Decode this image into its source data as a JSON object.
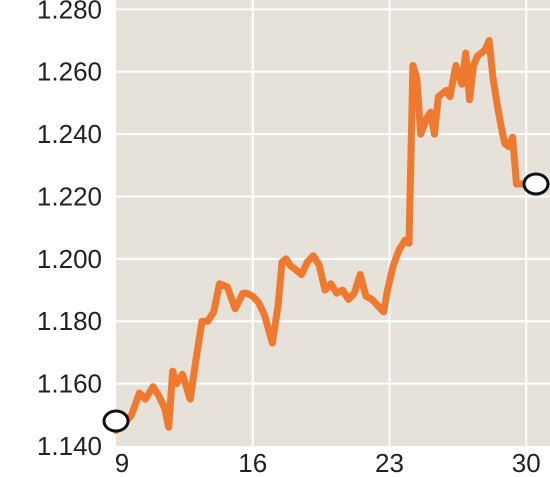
{
  "colors": {
    "plot_background": "#e6e2da",
    "grid": "#ffffff",
    "line": "#ef7a2f",
    "marker_fill": "#ffffff",
    "marker_stroke": "#111111"
  },
  "chart_data": {
    "type": "line",
    "title": "",
    "xlabel": "",
    "ylabel": "",
    "grid": true,
    "xlim": [
      9,
      30.5
    ],
    "ylim": [
      1.14,
      1.283
    ],
    "x_ticks": [
      {
        "value": 9,
        "label": "9"
      },
      {
        "value": 16,
        "label": "16"
      },
      {
        "value": 23,
        "label": "23"
      },
      {
        "value": 30,
        "label": "30"
      }
    ],
    "y_ticks": [
      {
        "value": 1.14,
        "label": "1.140"
      },
      {
        "value": 1.16,
        "label": "1.160"
      },
      {
        "value": 1.18,
        "label": "1.180"
      },
      {
        "value": 1.2,
        "label": "1.200"
      },
      {
        "value": 1.22,
        "label": "1.220"
      },
      {
        "value": 1.24,
        "label": "1.240"
      },
      {
        "value": 1.26,
        "label": "1.260"
      },
      {
        "value": 1.28,
        "label": "1.280"
      }
    ],
    "series": [
      {
        "x": [
          9.0,
          9.4,
          9.8,
          10.2,
          10.5,
          10.9,
          11.2,
          11.5,
          11.7,
          11.9,
          12.1,
          12.4,
          12.8,
          13.1,
          13.4,
          13.7,
          14.0,
          14.3,
          14.7,
          15.1,
          15.5,
          15.7,
          16.0,
          16.3,
          16.6,
          17.0,
          17.3,
          17.5,
          17.7,
          17.9,
          18.1,
          18.5,
          18.8,
          19.1,
          19.4,
          19.7,
          20.0,
          20.3,
          20.6,
          20.9,
          21.2,
          21.5,
          21.8,
          22.1,
          22.4,
          22.7,
          22.9,
          23.2,
          23.5,
          23.8,
          24.0,
          24.2,
          24.4,
          24.6,
          24.9,
          25.1,
          25.3,
          25.5,
          25.7,
          25.9,
          26.1,
          26.4,
          26.7,
          26.9,
          27.1,
          27.3,
          27.5,
          27.7,
          27.9,
          28.1,
          28.3,
          28.5,
          28.7,
          28.9,
          29.1,
          29.3,
          29.5,
          29.7,
          29.9,
          30.1,
          30.3
        ],
        "y": [
          1.145,
          1.147,
          1.15,
          1.157,
          1.155,
          1.159,
          1.156,
          1.152,
          1.146,
          1.164,
          1.16,
          1.163,
          1.155,
          1.168,
          1.18,
          1.18,
          1.183,
          1.192,
          1.191,
          1.184,
          1.189,
          1.189,
          1.188,
          1.186,
          1.182,
          1.173,
          1.185,
          1.199,
          1.2,
          1.198,
          1.197,
          1.195,
          1.199,
          1.201,
          1.198,
          1.19,
          1.192,
          1.189,
          1.19,
          1.187,
          1.189,
          1.195,
          1.188,
          1.187,
          1.185,
          1.183,
          1.19,
          1.198,
          1.203,
          1.206,
          1.205,
          1.262,
          1.258,
          1.24,
          1.245,
          1.247,
          1.24,
          1.252,
          1.253,
          1.254,
          1.252,
          1.262,
          1.256,
          1.266,
          1.251,
          1.262,
          1.265,
          1.266,
          1.267,
          1.27,
          1.258,
          1.25,
          1.243,
          1.237,
          1.236,
          1.239,
          1.224,
          1.224,
          1.224,
          1.224,
          1.224
        ]
      }
    ],
    "markers": [
      {
        "x": 9.0,
        "y": 1.148
      },
      {
        "x": 30.5,
        "y": 1.224
      }
    ]
  }
}
